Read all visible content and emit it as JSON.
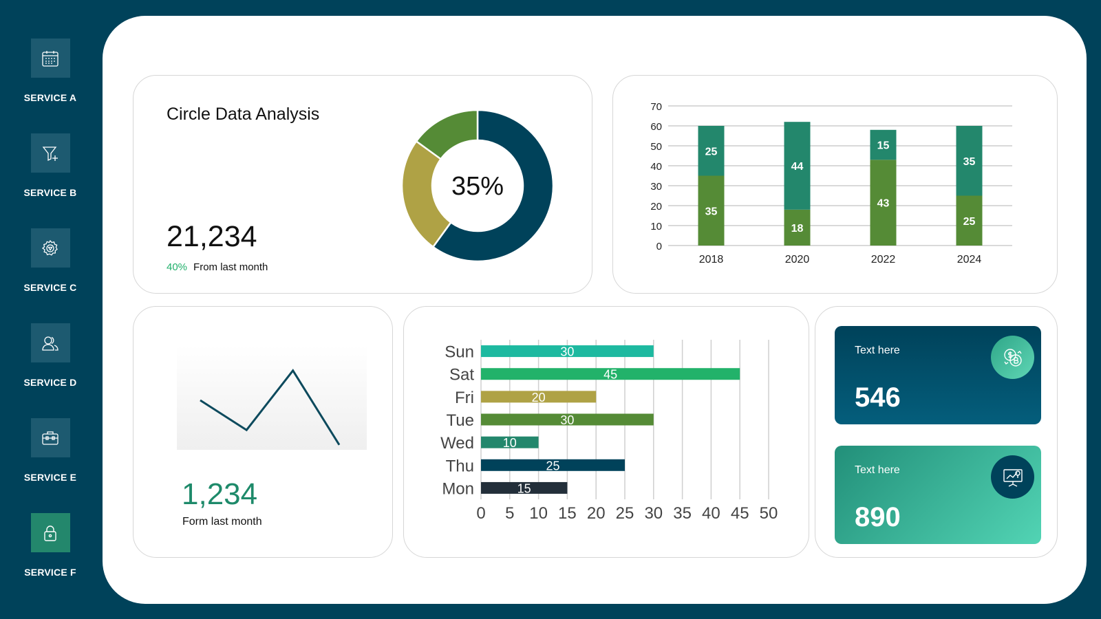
{
  "sidebar": {
    "items": [
      {
        "label": "SERVICE A",
        "icon": "calendar-icon"
      },
      {
        "label": "SERVICE B",
        "icon": "funnel-add-icon"
      },
      {
        "label": "SERVICE C",
        "icon": "gear-icon"
      },
      {
        "label": "SERVICE D",
        "icon": "users-icon"
      },
      {
        "label": "SERVICE E",
        "icon": "briefcase-icon"
      },
      {
        "label": "SERVICE F",
        "icon": "lock-icon"
      }
    ],
    "active": "SERVICE F"
  },
  "circle_card": {
    "title": "Circle Data Analysis",
    "value": "21,234",
    "change_pct": "40%",
    "change_label": "From last month",
    "center_label": "35%"
  },
  "line_card": {
    "value": "1,234",
    "label": "Form last month"
  },
  "stats": [
    {
      "label": "Text here",
      "value": "546",
      "icon": "currency-exchange-icon"
    },
    {
      "label": "Text here",
      "value": "890",
      "icon": "presentation-chart-icon"
    }
  ],
  "colors": {
    "navy": "#00425a",
    "teal": "#23876c",
    "green": "#558b36",
    "olive": "#afa245",
    "bright_green": "#21b06b"
  },
  "chart_data": [
    {
      "type": "pie",
      "donut": true,
      "values": [
        60,
        25,
        15
      ],
      "colors": [
        "#00425a",
        "#afa245",
        "#558b36"
      ]
    },
    {
      "type": "bar",
      "stacked": true,
      "categories": [
        "2018",
        "2020",
        "2022",
        "2024"
      ],
      "series": [
        {
          "values": [
            35,
            18,
            43,
            25
          ],
          "color": "#558b36"
        },
        {
          "values": [
            25,
            44,
            15,
            35
          ],
          "color": "#23876c"
        }
      ],
      "ylim": [
        0,
        70
      ],
      "yticks": [
        0,
        10,
        20,
        30,
        40,
        50,
        60,
        70
      ],
      "grid": true
    },
    {
      "type": "line",
      "values": [
        10,
        4,
        16,
        1
      ],
      "ylim": [
        0,
        20
      ]
    },
    {
      "type": "bar",
      "orientation": "horizontal",
      "categories": [
        "Sun",
        "Sat",
        "Fri",
        "Tue",
        "Wed",
        "Thu",
        "Mon"
      ],
      "values": [
        30,
        45,
        20,
        30,
        10,
        25,
        15
      ],
      "colors": [
        "#1db9a0",
        "#22b26a",
        "#afa245",
        "#558b36",
        "#23876c",
        "#00425a",
        "#232f3a"
      ],
      "xlim": [
        0,
        50
      ],
      "xticks": [
        0,
        5,
        10,
        15,
        20,
        25,
        30,
        35,
        40,
        45,
        50
      ],
      "grid": true
    }
  ]
}
